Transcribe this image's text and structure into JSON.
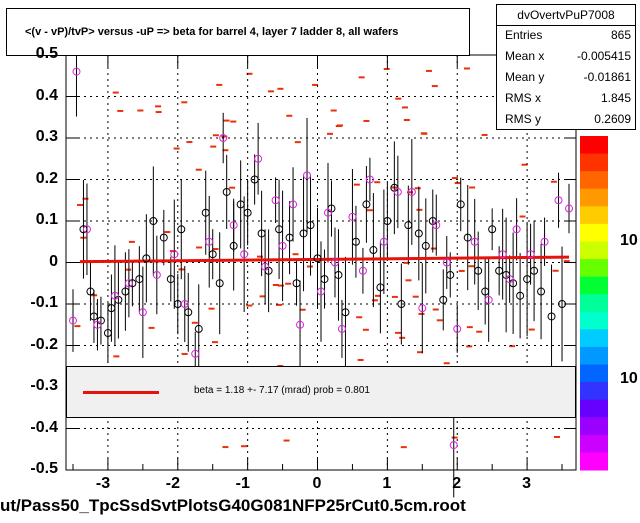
{
  "chart_data": {
    "type": "scatter",
    "title": "<(v - vP)/tvP> versus  -uP => beta for barrel 4, layer 7 ladder 8, all wafers",
    "xlabel": "",
    "ylabel": "",
    "xlim": [
      -3.6,
      3.7
    ],
    "ylim": [
      -0.5,
      0.5
    ],
    "xticks": [
      "-3",
      "-2",
      "-1",
      "0",
      "1",
      "2",
      "3"
    ],
    "yticks": [
      "-0.5",
      "-0.4",
      "-0.3",
      "-0.2",
      "-0.1",
      "0",
      "0.1",
      "0.2",
      "0.3",
      "0.4",
      "0.5"
    ],
    "fit": {
      "x": [
        -3.4,
        3.6
      ],
      "y": [
        0.002,
        0.013
      ],
      "color": "#e8120c"
    },
    "series": [
      {
        "marker": "open-circle-black",
        "x": [
          -3.35,
          -3.25,
          -3.2,
          -3.1,
          -3.0,
          -2.95,
          -2.85,
          -2.75,
          -2.65,
          -2.55,
          -2.45,
          -2.35,
          -2.2,
          -2.1,
          -2.0,
          -1.95,
          -1.85,
          -1.7,
          -1.6,
          -1.5,
          -1.4,
          -1.3,
          -1.2,
          -1.1,
          -1.0,
          -0.9,
          -0.8,
          -0.7,
          -0.55,
          -0.4,
          -0.3,
          -0.2,
          -0.1,
          0.0,
          0.1,
          0.2,
          0.3,
          0.4,
          0.55,
          0.7,
          0.8,
          0.9,
          1.0,
          1.1,
          1.2,
          1.3,
          1.45,
          1.55,
          1.65,
          1.8,
          1.9,
          2.05,
          2.15,
          2.3,
          2.4,
          2.5,
          2.6,
          2.7,
          2.8,
          2.9,
          3.0,
          3.1,
          3.2,
          3.35,
          3.5
        ],
        "y": [
          0.08,
          -0.07,
          -0.13,
          -0.14,
          -0.17,
          -0.11,
          -0.09,
          -0.07,
          -0.05,
          -0.04,
          0.01,
          0.1,
          0.06,
          -0.04,
          -0.1,
          0.08,
          -0.12,
          -0.16,
          0.12,
          0.02,
          -0.05,
          0.17,
          0.04,
          0.14,
          0.12,
          0.2,
          0.07,
          -0.02,
          0.08,
          0.06,
          -0.05,
          0.07,
          0.09,
          0.01,
          -0.04,
          0.13,
          -0.03,
          -0.12,
          0.05,
          0.14,
          0.03,
          -0.06,
          0.1,
          0.18,
          -0.1,
          0.09,
          0.07,
          0.04,
          0.1,
          -0.09,
          -0.03,
          0.14,
          0.06,
          -0.02,
          -0.07,
          0.08,
          -0.02,
          -0.03,
          -0.05,
          -0.08,
          -0.04,
          -0.02,
          -0.07,
          -0.13,
          -0.1
        ]
      },
      {
        "marker": "open-circle-magenta",
        "x": [
          -3.45,
          -3.3,
          -3.15,
          -2.9,
          -2.7,
          -2.5,
          -2.3,
          -2.05,
          -1.9,
          -1.75,
          -1.55,
          -1.35,
          -1.2,
          -1.05,
          -0.85,
          -0.75,
          -0.6,
          -0.5,
          -0.35,
          -0.25,
          -0.15,
          0.05,
          0.15,
          0.25,
          0.35,
          0.5,
          0.65,
          0.75,
          0.95,
          1.15,
          1.35,
          1.5,
          1.7,
          1.85,
          2.0,
          2.25,
          2.45,
          2.65,
          2.75,
          2.85,
          3.05,
          3.25,
          3.45,
          3.6,
          -3.5,
          1.95
        ],
        "y": [
          0.46,
          0.08,
          -0.15,
          -0.08,
          -0.05,
          -0.12,
          -0.03,
          0.02,
          -0.1,
          -0.22,
          0.05,
          0.3,
          0.09,
          0.02,
          0.25,
          -0.01,
          0.15,
          0.04,
          0.14,
          -0.15,
          0.21,
          -0.07,
          0.12,
          0.0,
          -0.16,
          0.11,
          -0.02,
          0.2,
          0.05,
          0.17,
          0.17,
          -0.11,
          0.09,
          0.0,
          -0.16,
          0.05,
          -0.09,
          0.02,
          -0.04,
          0.08,
          0.02,
          0.05,
          0.15,
          0.13,
          -0.14,
          -0.44
        ]
      }
    ],
    "colorbar": {
      "labels": [
        "10",
        "10"
      ]
    }
  },
  "stats": {
    "name": "dvOvertvPuP7008",
    "rows": [
      {
        "label": "Entries",
        "value": "865"
      },
      {
        "label": "Mean x",
        "value": "-0.005415"
      },
      {
        "label": "Mean y",
        "value": "-0.01861"
      },
      {
        "label": "RMS x",
        "value": "1.845"
      },
      {
        "label": "RMS y",
        "value": "0.2609"
      }
    ]
  },
  "legend": {
    "text": "beta =    1.18 +-  7.17 (mrad) prob = 0.801"
  },
  "footer": "ut/Pass50_TpcSsdSvtPlotsG40G081NFP25rCut0.5cm.root",
  "colors": {
    "fit": "#e8120c",
    "points_black": "#000000",
    "points_magenta": "#e020e0",
    "hist_marks": "#e8310c",
    "legend_bg": "#f0f0f0"
  }
}
